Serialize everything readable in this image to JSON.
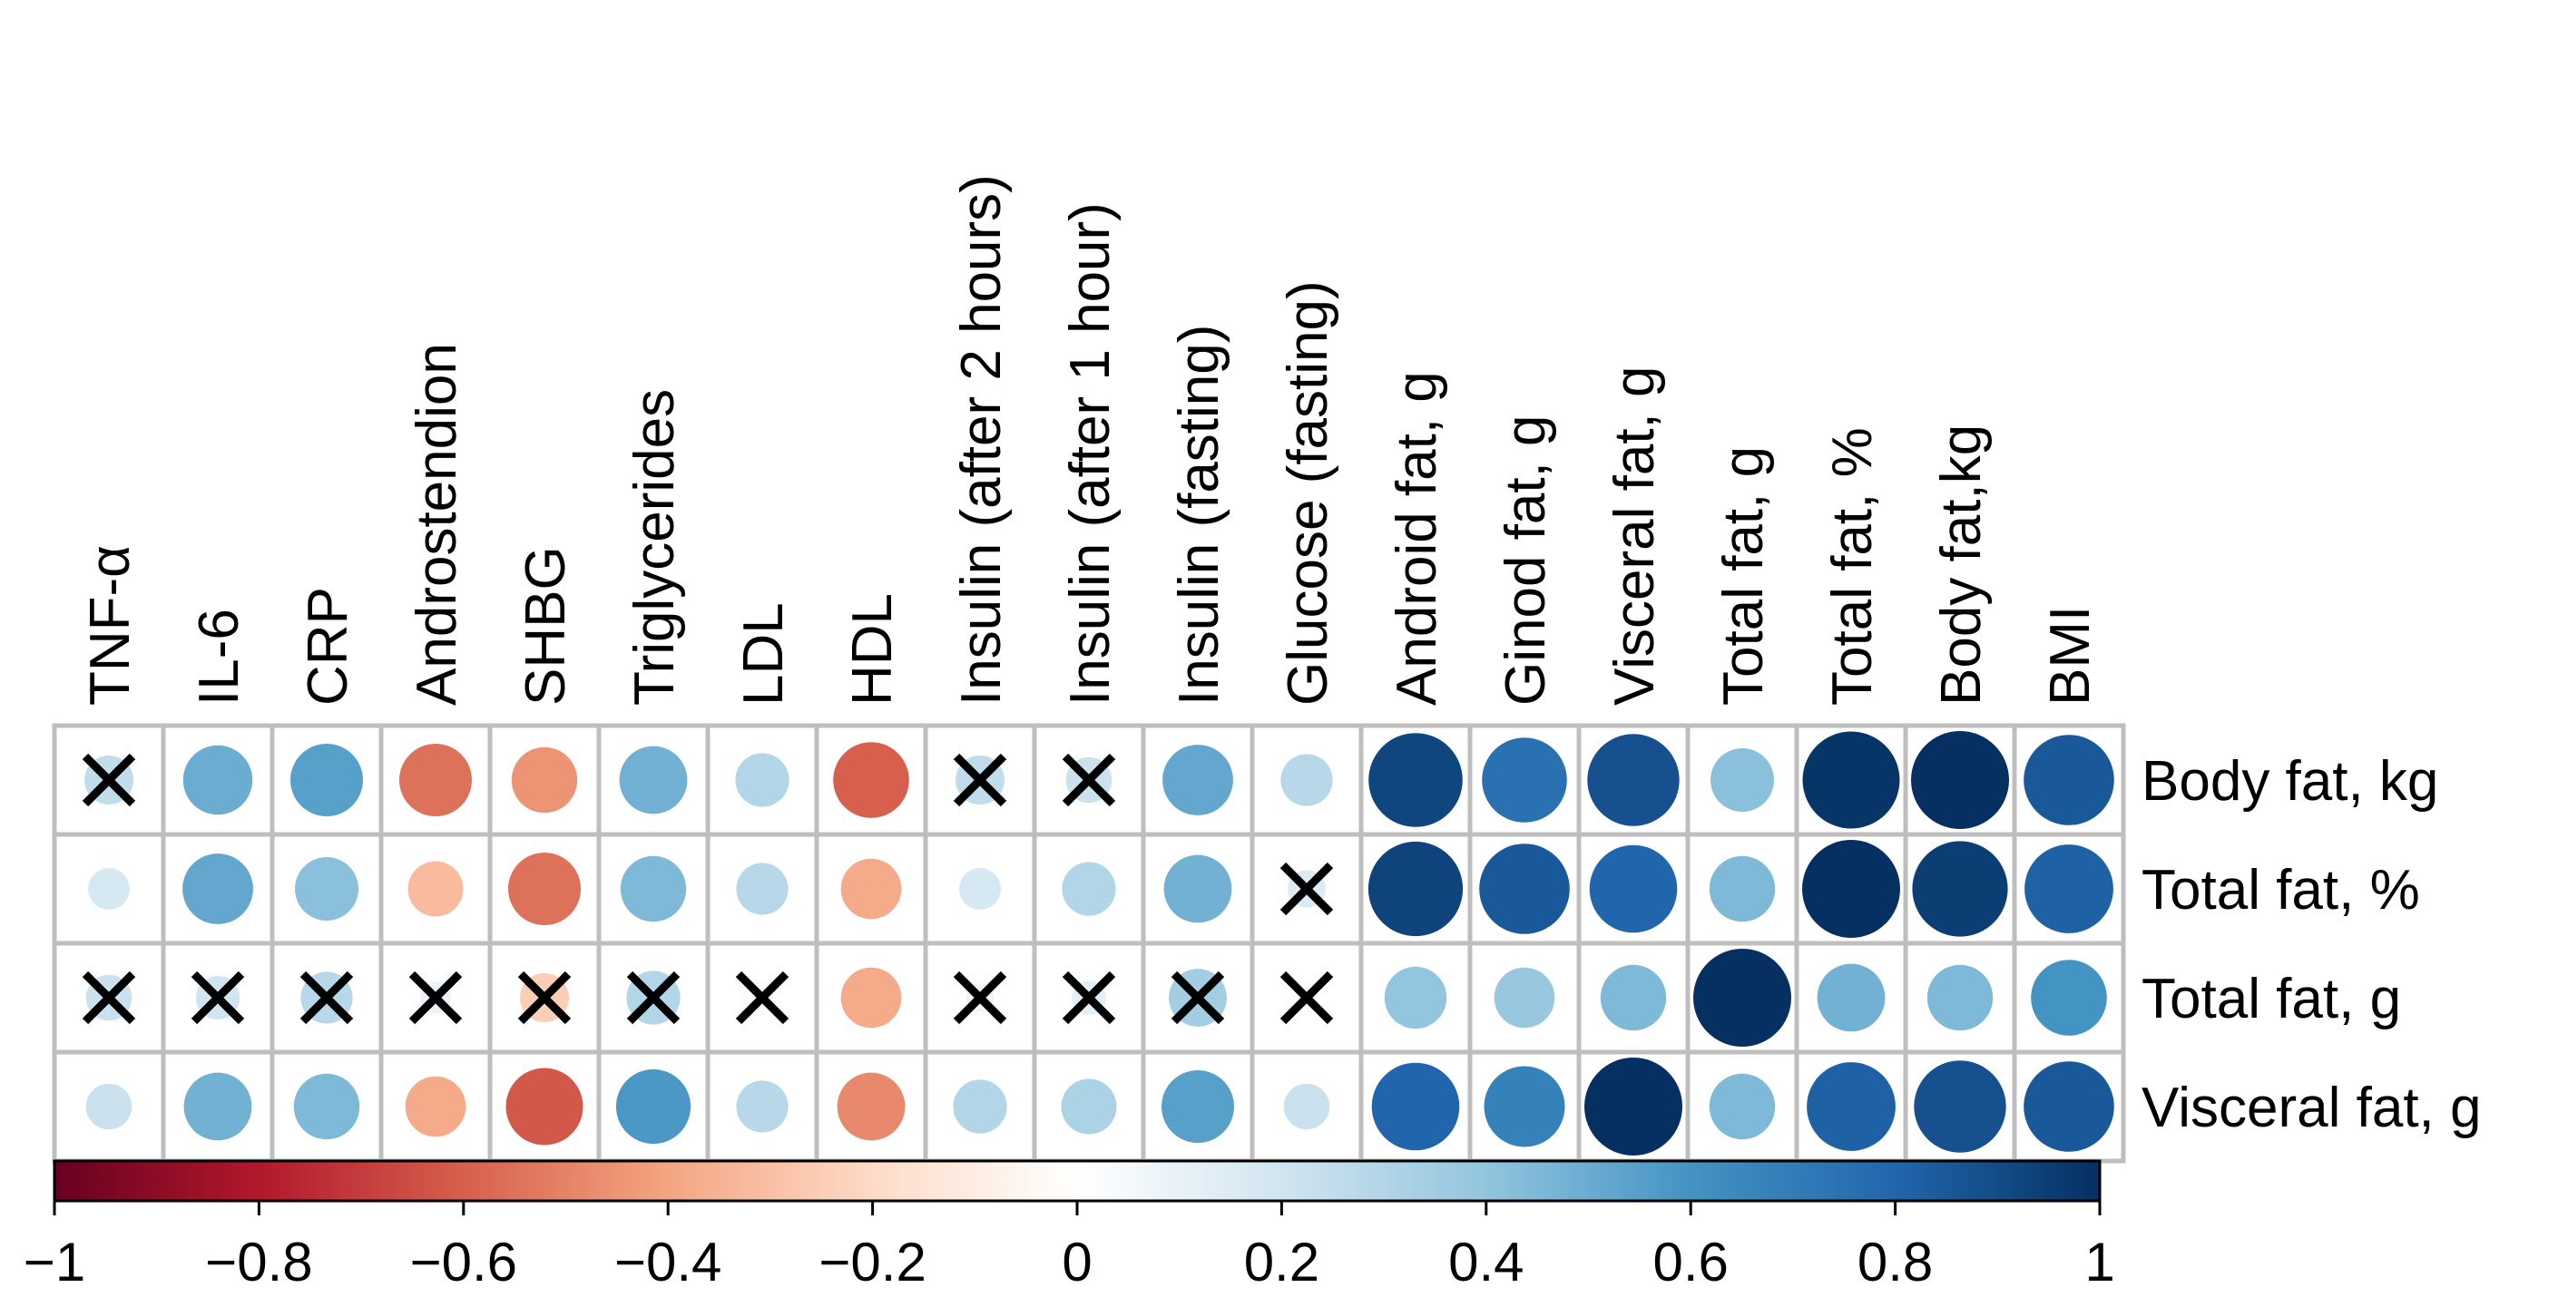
{
  "chart_data": {
    "type": "heatmap",
    "style": "circle-correlation-matrix",
    "columns": [
      "TNF-α",
      "IL-6",
      "CRP",
      "Androstendion",
      "SHBG",
      "Triglycerides",
      "LDL",
      "HDL",
      "Insulin (after 2 hours)",
      "Insulin (after 1 hour)",
      "Insulin (fasting)",
      "Glucose (fasting)",
      "Android fat, g",
      "Ginod fat, g",
      "Visceral fat, g",
      "Total fat, g",
      "Total fat, %",
      "Body fat,kg",
      "BMI"
    ],
    "rows": [
      "Body fat, kg",
      "Total fat, %",
      "Total fat, g",
      "Visceral fat, g"
    ],
    "values": [
      [
        0.25,
        0.5,
        0.55,
        -0.55,
        -0.45,
        0.48,
        0.3,
        -0.6,
        0.25,
        0.22,
        0.52,
        0.28,
        0.92,
        0.75,
        0.88,
        0.42,
        0.98,
        1.0,
        0.85
      ],
      [
        0.18,
        0.52,
        0.42,
        -0.32,
        -0.55,
        0.45,
        0.28,
        -0.38,
        0.18,
        0.3,
        0.48,
        0.15,
        0.93,
        0.85,
        0.8,
        0.45,
        1.0,
        0.95,
        0.82
      ],
      [
        0.22,
        0.2,
        0.28,
        0.1,
        -0.25,
        0.3,
        0.05,
        -0.38,
        0.08,
        0.12,
        0.35,
        0.05,
        0.4,
        0.38,
        0.45,
        1.0,
        0.48,
        0.45,
        0.6
      ],
      [
        0.22,
        0.48,
        0.45,
        -0.38,
        -0.62,
        0.58,
        0.28,
        -0.48,
        0.3,
        0.32,
        0.55,
        0.22,
        0.8,
        0.68,
        1.0,
        0.45,
        0.82,
        0.88,
        0.85
      ]
    ],
    "nonsignificant_marked_x": [
      [
        true,
        false,
        false,
        false,
        false,
        false,
        false,
        false,
        true,
        true,
        false,
        false,
        false,
        false,
        false,
        false,
        false,
        false,
        false
      ],
      [
        false,
        false,
        false,
        false,
        false,
        false,
        false,
        false,
        false,
        false,
        false,
        true,
        false,
        false,
        false,
        false,
        false,
        false,
        false
      ],
      [
        true,
        true,
        true,
        true,
        true,
        true,
        true,
        false,
        true,
        true,
        true,
        true,
        false,
        false,
        false,
        false,
        false,
        false,
        false
      ],
      [
        false,
        false,
        false,
        false,
        false,
        false,
        false,
        false,
        false,
        false,
        false,
        false,
        false,
        false,
        false,
        false,
        false,
        false,
        false
      ]
    ],
    "colorbar": {
      "min": -1,
      "max": 1,
      "ticks": [
        "−1",
        "−0.8",
        "−0.6",
        "−0.4",
        "−0.2",
        "0",
        "0.2",
        "0.4",
        "0.6",
        "0.8",
        "1"
      ],
      "palette": [
        "#67001f",
        "#b2182b",
        "#d6604d",
        "#f4a582",
        "#fddbc7",
        "#ffffff",
        "#d1e5f0",
        "#92c5de",
        "#4393c3",
        "#2166ac",
        "#053061"
      ]
    }
  }
}
